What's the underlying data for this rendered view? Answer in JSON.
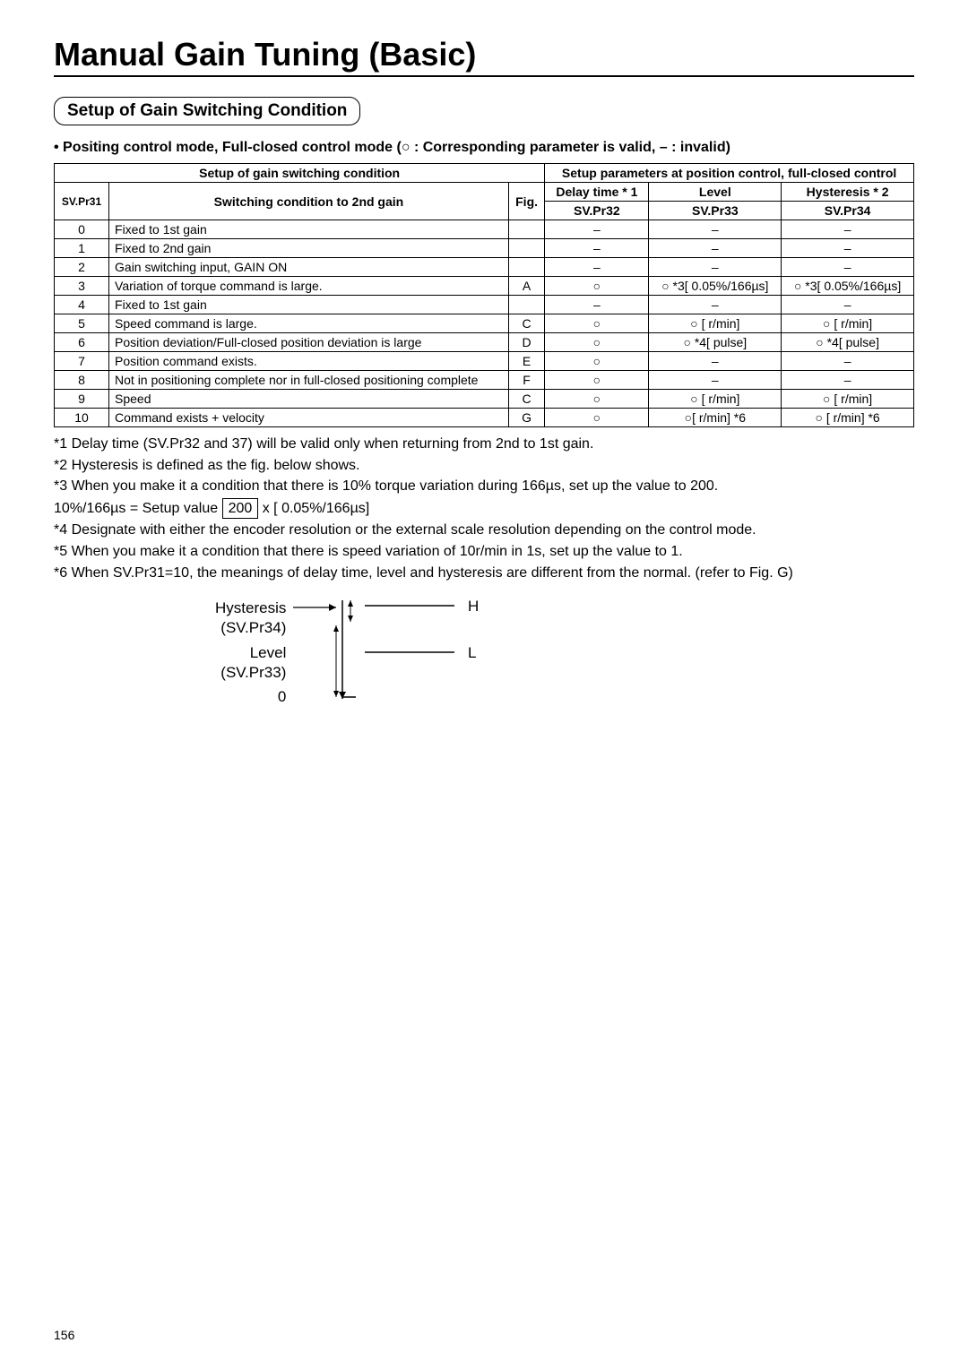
{
  "title": "Manual Gain Tuning (Basic)",
  "sectionHeading": "Setup of Gain Switching Condition",
  "modeLine": "• Positing control mode, Full-closed control mode (○ : Corresponding parameter is valid,  – : invalid)",
  "table": {
    "header1_left": "Setup of gain switching condition",
    "header1_right": "Setup parameters at position control, full-closed control",
    "h2_c1": "Delay time * 1",
    "h2_c2": "Level",
    "h2_c3": "Hysteresis * 2",
    "h3_c0": "SV.Pr31",
    "h3_c1": "Switching condition to 2nd gain",
    "h3_c2": "Fig.",
    "h3_c3": "SV.Pr32",
    "h3_c4": "SV.Pr33",
    "h3_c5": "SV.Pr34",
    "rows": [
      {
        "n": "0",
        "cond": "Fixed to 1st gain",
        "fig": "",
        "d": "–",
        "lv": "–",
        "hy": "–"
      },
      {
        "n": "1",
        "cond": "Fixed to 2nd gain",
        "fig": "",
        "d": "–",
        "lv": "–",
        "hy": "–"
      },
      {
        "n": "2",
        "cond": "Gain switching input, GAIN ON",
        "fig": "",
        "d": "–",
        "lv": "–",
        "hy": "–"
      },
      {
        "n": "3",
        "cond": "Variation of torque command is large.",
        "fig": "A",
        "d": "○",
        "lv": "○ *3[ 0.05%/166µs]",
        "hy": "○ *3[ 0.05%/166µs]"
      },
      {
        "n": "4",
        "cond": "Fixed to 1st gain",
        "fig": "",
        "d": "–",
        "lv": "–",
        "hy": "–"
      },
      {
        "n": "5",
        "cond": "Speed command is large.",
        "fig": "C",
        "d": "○",
        "lv": "○ [ r/min]",
        "hy": "○ [ r/min]"
      },
      {
        "n": "6",
        "cond": "Position deviation/Full-closed position deviation is large",
        "fig": "D",
        "d": "○",
        "lv": "○ *4[ pulse]",
        "hy": "○ *4[ pulse]"
      },
      {
        "n": "7",
        "cond": "Position command exists.",
        "fig": "E",
        "d": "○",
        "lv": "–",
        "hy": "–"
      },
      {
        "n": "8",
        "cond": "Not in positioning complete nor in full-closed positioning complete",
        "fig": "F",
        "d": "○",
        "lv": "–",
        "hy": "–"
      },
      {
        "n": "9",
        "cond": "Speed",
        "fig": "C",
        "d": "○",
        "lv": "○ [ r/min]",
        "hy": "○ [ r/min]"
      },
      {
        "n": "10",
        "cond": "Command exists + velocity",
        "fig": "G",
        "d": "○",
        "lv": "○[ r/min]  *6",
        "hy": "○ [ r/min]  *6"
      }
    ]
  },
  "notes": {
    "n1": "*1 Delay time (SV.Pr32 and 37) will be valid only when returning from 2nd to 1st gain.",
    "n2": "*2 Hysteresis is defined as the fig. below shows.",
    "n3": "*3 When you make it a condition that there is 10% torque variation during 166µs, set up the value to 200.",
    "n3b_pre": "10%/166µs =  Setup value ",
    "n3b_box": "200",
    "n3b_post": "  x [  0.05%/166µs]",
    "n4": "*4 Designate with either the encoder resolution or the external scale resolution depending on the control mode.",
    "n5": "*5 When you make it a condition that there is speed variation of 10r/min in 1s, set up the value to 1.",
    "n6": "*6 When SV.Pr31=10, the meanings of delay time, level and hysteresis are different from the normal. (refer to Fig. G)"
  },
  "diagram": {
    "hyst_label": "Hysteresis",
    "hyst_sub": "(SV.Pr34)",
    "level_label": "Level",
    "level_sub": "(SV.Pr33)",
    "zero": "0",
    "H": "H",
    "L": "L"
  },
  "pageNumber": "156"
}
